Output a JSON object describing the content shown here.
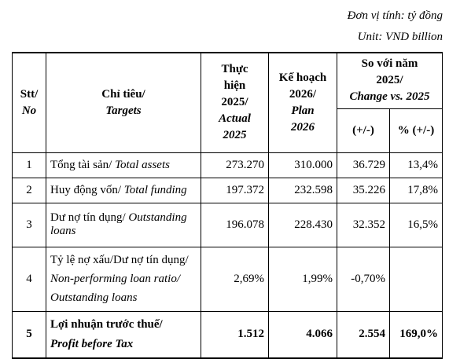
{
  "unit_vi": "Đơn vị tính: tỷ đồng",
  "unit_en": "Unit: VND billion",
  "headers": {
    "stt_vi": "Stt/",
    "stt_en": "No",
    "target_vi": "Chỉ tiêu/",
    "target_en": "Targets",
    "actual_vi_1": "Thực",
    "actual_vi_2": "hiện",
    "actual_vi_3": "2025/",
    "actual_en_1": "Actual",
    "actual_en_2": "2025",
    "plan_vi_1": "Kế hoạch",
    "plan_vi_2": "2026/",
    "plan_en_1": "Plan",
    "plan_en_2": "2026",
    "compare_vi_1": "So với năm",
    "compare_vi_2": "2025/",
    "compare_en": "Change vs. 2025",
    "diff": "(+/-)",
    "pct": "% (+/-)"
  },
  "rows": [
    {
      "no": "1",
      "vi": "Tổng tài sản/ ",
      "en": "Total assets",
      "actual": "273.270",
      "plan": "310.000",
      "diff": "36.729",
      "pct": "13,4%"
    },
    {
      "no": "2",
      "vi": "Huy động vốn/ ",
      "en": "Total funding",
      "actual": "197.372",
      "plan": "232.598",
      "diff": "35.226",
      "pct": "17,8%"
    },
    {
      "no": "3",
      "vi": "Dư nợ tín dụng/ ",
      "en": "Outstanding",
      "en2": "loans",
      "actual": "196.078",
      "plan": "228.430",
      "diff": "32.352",
      "pct": "16,5%"
    },
    {
      "no": "4",
      "vi": "Tỷ lệ nợ xấu/Dư nợ tín dụng/",
      "en": "Non-performing loan ratio/",
      "en2": "Outstanding loans",
      "actual": "2,69%",
      "plan": "1,99%",
      "diff": "-0,70%",
      "pct": ""
    },
    {
      "no": "5",
      "vi": "Lợi nhuận trước thuế/",
      "en": "Profit before Tax",
      "actual": "1.512",
      "plan": "4.066",
      "diff": "2.554",
      "pct": "169,0%"
    }
  ]
}
